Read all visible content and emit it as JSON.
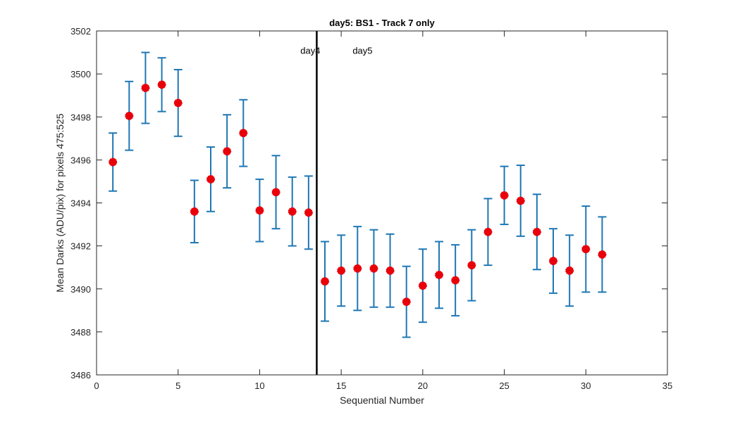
{
  "chart_data": {
    "type": "scatter",
    "title": "day5: BS1 - Track 7 only",
    "xlabel": "Sequential Number",
    "ylabel": "Mean Darks (ADU/pix) for pixels 475:525",
    "xlim": [
      0,
      35
    ],
    "ylim": [
      3486,
      3502
    ],
    "xticks": [
      0,
      5,
      10,
      15,
      20,
      25,
      30,
      35
    ],
    "yticks": [
      3486,
      3488,
      3490,
      3492,
      3494,
      3496,
      3498,
      3500,
      3502
    ],
    "grid": false,
    "legend": "none",
    "colors": {
      "errorbar": "#1f77b4",
      "marker": "#e8000b",
      "divider": "#000000",
      "axes": "#262626"
    },
    "divider": {
      "x": 13.5
    },
    "annotations": [
      {
        "text": "day4",
        "x": 12.5,
        "y": 3501.1
      },
      {
        "text": "day5",
        "x": 15.7,
        "y": 3501.1
      }
    ],
    "series": [
      {
        "x": [
          1,
          2,
          3,
          4,
          5,
          6,
          7,
          8,
          9,
          10,
          11,
          12,
          13,
          14,
          15,
          16,
          17,
          18,
          19,
          20,
          21,
          22,
          23,
          24,
          25,
          26,
          27,
          28,
          29,
          30,
          31
        ],
        "y": [
          3495.9,
          3498.05,
          3499.35,
          3499.5,
          3498.65,
          3493.6,
          3495.1,
          3496.4,
          3497.25,
          3493.65,
          3494.5,
          3493.6,
          3493.55,
          3490.35,
          3490.85,
          3490.95,
          3490.95,
          3490.85,
          3489.4,
          3490.15,
          3490.65,
          3490.4,
          3491.1,
          3492.65,
          3494.35,
          3494.1,
          3492.65,
          3491.3,
          3490.85,
          3491.85,
          3491.6
        ],
        "err": [
          1.35,
          1.6,
          1.65,
          1.25,
          1.55,
          1.45,
          1.5,
          1.7,
          1.55,
          1.45,
          1.7,
          1.6,
          1.7,
          1.85,
          1.65,
          1.95,
          1.8,
          1.7,
          1.65,
          1.7,
          1.55,
          1.65,
          1.65,
          1.55,
          1.35,
          1.65,
          1.75,
          1.5,
          1.65,
          2.0,
          1.75
        ]
      }
    ]
  }
}
